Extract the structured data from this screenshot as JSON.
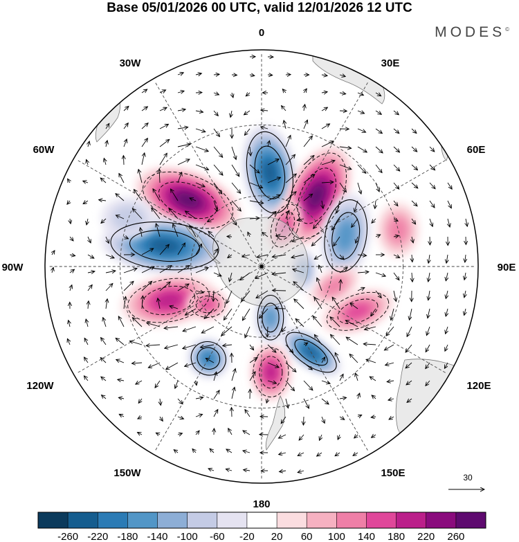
{
  "title": "Base 05/01/2026 00 UTC, valid 12/01/2026 12 UTC",
  "brand": "MODES",
  "brand_mark": "©",
  "longitude_labels": {
    "l0": "0",
    "l30e": "30E",
    "l60e": "60E",
    "l90e": "90E",
    "l120e": "120E",
    "l150e": "150E",
    "l180": "180",
    "l150w": "150W",
    "l120w": "120W",
    "l90w": "90W",
    "l60w": "60W",
    "l30w": "30W"
  },
  "reference_vector": {
    "label": "30"
  },
  "colorbar": {
    "colors": [
      "#0b3a5c",
      "#155d8f",
      "#2b7bb5",
      "#5296c7",
      "#8daed6",
      "#c4cbe5",
      "#e5e3f1",
      "#ffffff",
      "#fbdde0",
      "#f6b1c1",
      "#ef7fa7",
      "#e0479a",
      "#bb1f8a",
      "#8a0b7d",
      "#5e0a6f"
    ],
    "ticks": [
      "-260",
      "-220",
      "-180",
      "-140",
      "-100",
      "-60",
      "-20",
      "20",
      "60",
      "100",
      "140",
      "180",
      "220",
      "260"
    ]
  },
  "anomaly_centers": [
    {
      "lon": 5,
      "lat": 50,
      "value": -220,
      "rx": 38,
      "ry": 70,
      "rot": -10
    },
    {
      "lon": 38,
      "lat": 52,
      "value": 240,
      "rx": 42,
      "ry": 78,
      "rot": 25
    },
    {
      "lon": -48,
      "lat": 48,
      "value": 260,
      "rx": 80,
      "ry": 42,
      "rot": 20
    },
    {
      "lon": -78,
      "lat": 48,
      "value": -210,
      "rx": 92,
      "ry": 40,
      "rot": 5
    },
    {
      "lon": 70,
      "lat": 52,
      "value": -150,
      "rx": 35,
      "ry": 62,
      "rot": 10
    },
    {
      "lon": 30,
      "lat": 70,
      "value": 140,
      "rx": 22,
      "ry": 38,
      "rot": 20
    },
    {
      "lon": -110,
      "lat": 48,
      "value": 190,
      "rx": 70,
      "ry": 36,
      "rot": -10
    },
    {
      "lon": -125,
      "lat": 62,
      "value": 140,
      "rx": 30,
      "ry": 22,
      "rot": 0
    },
    {
      "lon": 150,
      "lat": 48,
      "value": -220,
      "rx": 50,
      "ry": 22,
      "rot": 35
    },
    {
      "lon": 175,
      "lat": 45,
      "value": 180,
      "rx": 30,
      "ry": 42,
      "rot": 0
    },
    {
      "lon": -150,
      "lat": 45,
      "value": -190,
      "rx": 30,
      "ry": 28,
      "rot": 30
    },
    {
      "lon": 170,
      "lat": 68,
      "value": -130,
      "rx": 22,
      "ry": 38,
      "rot": 0
    },
    {
      "lon": 115,
      "lat": 45,
      "value": 140,
      "rx": 55,
      "ry": 28,
      "rot": -20
    },
    {
      "lon": 105,
      "lat": 58,
      "value": 110,
      "rx": 40,
      "ry": 22,
      "rot": -30
    },
    {
      "lon": 95,
      "lat": 72,
      "value": -90,
      "rx": 18,
      "ry": 30,
      "rot": 0
    },
    {
      "lon": 75,
      "lat": 30,
      "value": 80,
      "rx": 30,
      "ry": 40,
      "rot": 0
    },
    {
      "lon": -70,
      "lat": 30,
      "value": -60,
      "rx": 40,
      "ry": 30,
      "rot": 0
    }
  ]
}
